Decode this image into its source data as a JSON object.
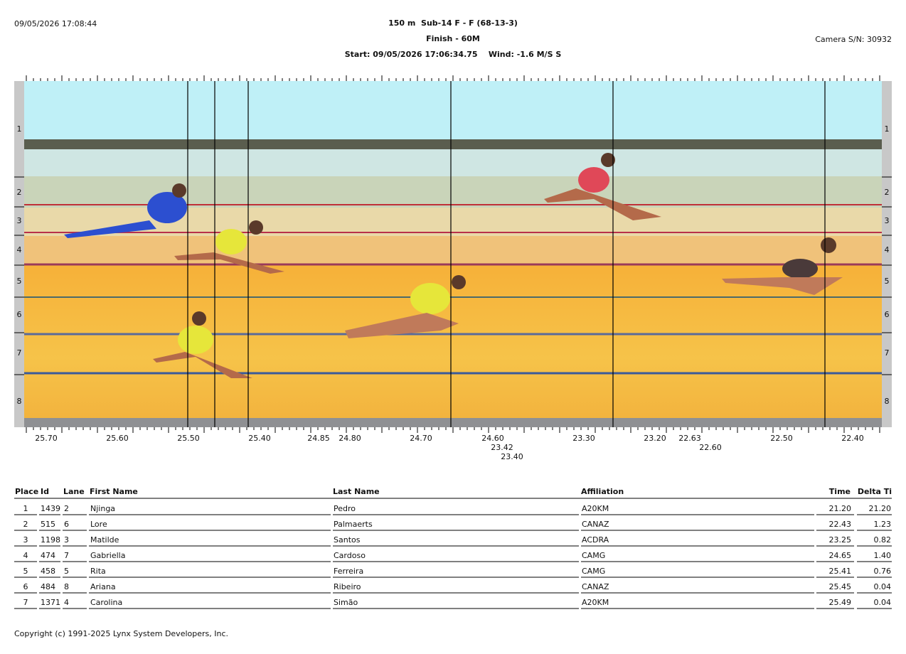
{
  "header": {
    "timestamp": "09/05/2026 17:08:44",
    "title": "150 m  Sub-14 F - F (68-13-3)",
    "subtitle": "Finish - 60M",
    "start_info": "Start: 09/05/2026 17:06:34.75    Wind: -1.6 M/S S",
    "camera": "Camera S/N: 30932"
  },
  "photo": {
    "lanes": [
      "1",
      "2",
      "3",
      "4",
      "5",
      "6",
      "7",
      "8"
    ],
    "time_labels": [
      "25.70",
      "25.60",
      "25.50",
      "25.40",
      "24.85",
      "24.80",
      "24.70",
      "24.60",
      "23.42",
      "23.40",
      "23.30",
      "23.20",
      "22.63",
      "22.60",
      "22.50",
      "22.40"
    ]
  },
  "table": {
    "columns": [
      "Place",
      "Id",
      "Lane",
      "First Name",
      "Last Name",
      "Affiliation",
      "Time",
      "Delta Ti"
    ],
    "rows": [
      [
        "1",
        "1439",
        "2",
        "Njinga",
        "Pedro",
        "A20KM",
        "21.20",
        "21.20"
      ],
      [
        "2",
        "515",
        "6",
        "Lore",
        "Palmaerts",
        "CANAZ",
        "22.43",
        "1.23"
      ],
      [
        "3",
        "1198",
        "3",
        "Matilde",
        "Santos",
        "ACDRA",
        "23.25",
        "0.82"
      ],
      [
        "4",
        "474",
        "7",
        "Gabriella",
        "Cardoso",
        "CAMG",
        "24.65",
        "1.40"
      ],
      [
        "5",
        "458",
        "5",
        "Rita",
        "Ferreira",
        "CAMG",
        "25.41",
        "0.76"
      ],
      [
        "6",
        "484",
        "8",
        "Ariana",
        "Ribeiro",
        "CANAZ",
        "25.45",
        "0.04"
      ],
      [
        "7",
        "1371",
        "4",
        "Carolina",
        "Simão",
        "A20KM",
        "25.49",
        "0.04"
      ]
    ]
  },
  "footer": {
    "copyright": "Copyright (c) 1991-2025 Lynx System Developers, Inc."
  }
}
